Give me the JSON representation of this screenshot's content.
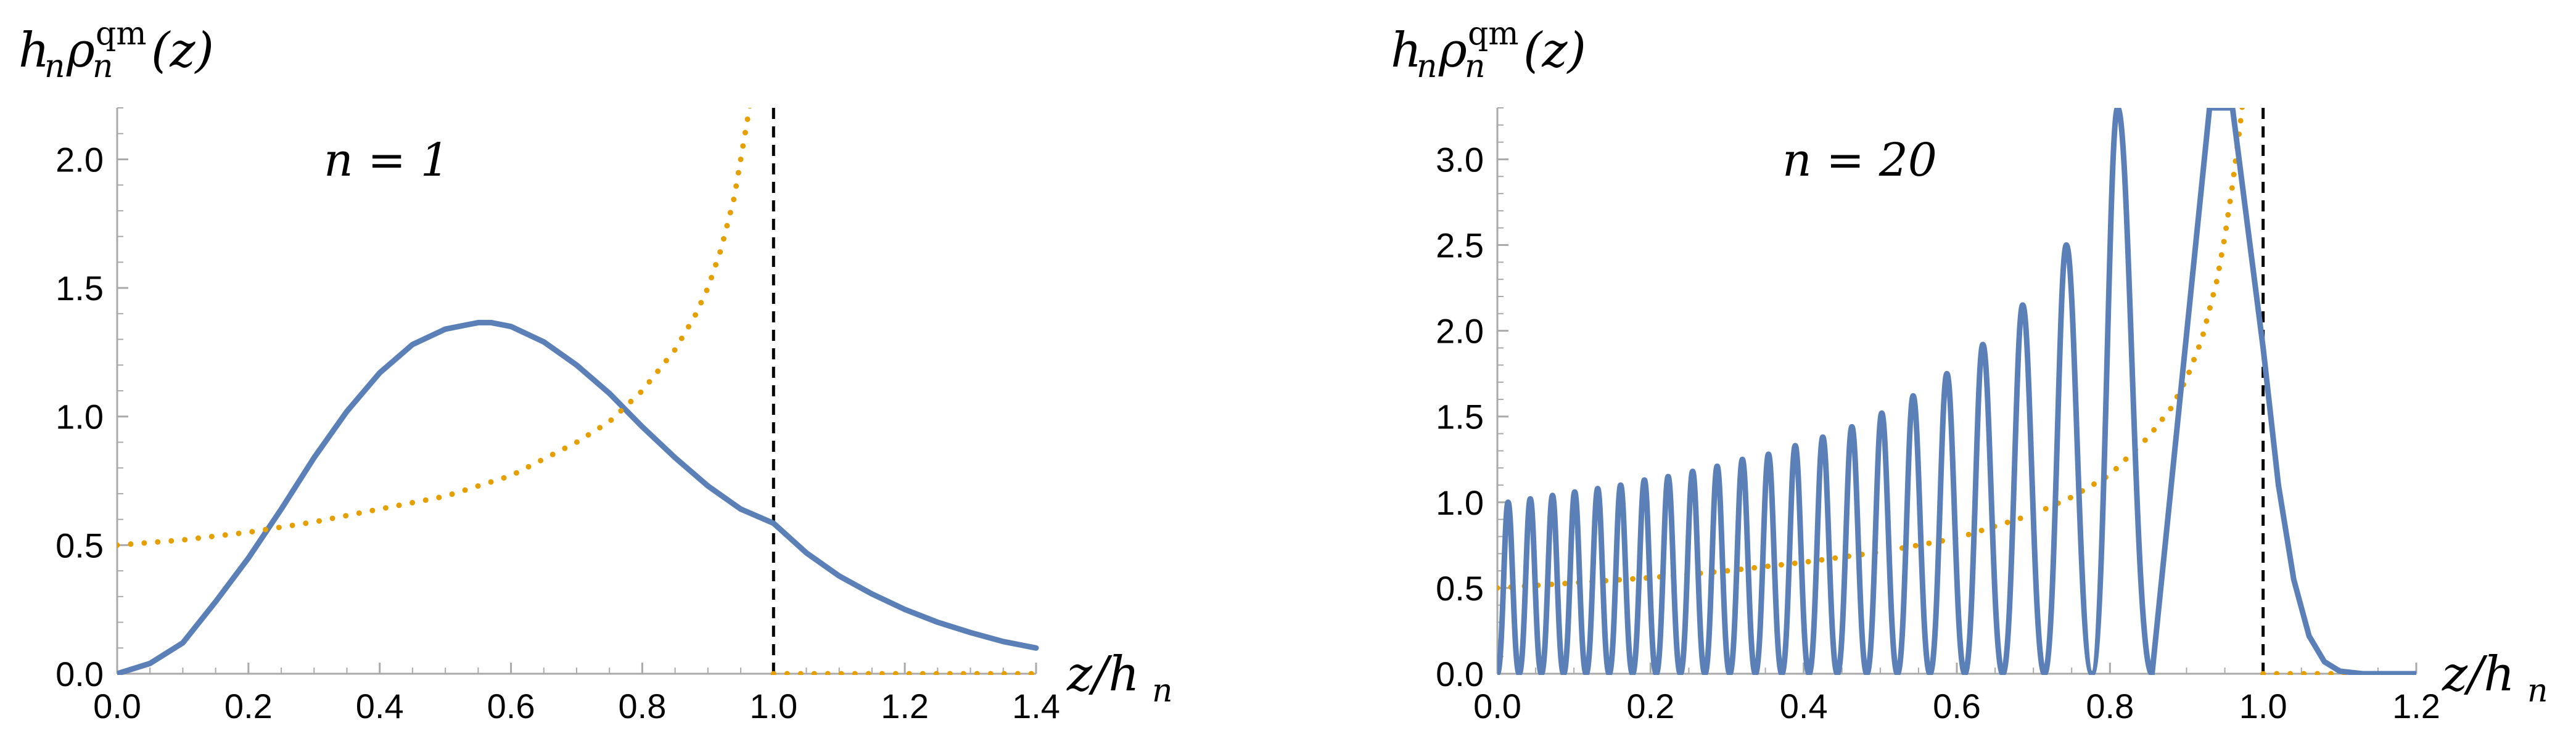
{
  "chart_data": [
    {
      "type": "line",
      "panel": "left",
      "annotation": "n = 1",
      "ylabel_parts": {
        "h": "h",
        "sub1": "n",
        "rho": "ρ",
        "sup": "qm",
        "sub2": "n",
        "arg": "(z)"
      },
      "xlabel_parts": {
        "num": "z/h",
        "sub": "n"
      },
      "xlim": [
        0,
        1.4
      ],
      "ylim": [
        0,
        2.2
      ],
      "xticks": [
        "0.0",
        "0.2",
        "0.4",
        "0.6",
        "0.8",
        "1.0",
        "1.2",
        "1.4"
      ],
      "yticks": [
        "0.0",
        "0.5",
        "1.0",
        "1.5",
        "2.0"
      ],
      "xtick_values": [
        0,
        0.2,
        0.4,
        0.6,
        0.8,
        1.0,
        1.2,
        1.4
      ],
      "ytick_values": [
        0,
        0.5,
        1.0,
        1.5,
        2.0
      ],
      "series": [
        {
          "style": "solid",
          "color": "#5b7fb7",
          "x": [
            0,
            0.05,
            0.1,
            0.15,
            0.2,
            0.25,
            0.3,
            0.35,
            0.4,
            0.45,
            0.5,
            0.55,
            0.57,
            0.6,
            0.65,
            0.7,
            0.75,
            0.8,
            0.85,
            0.9,
            0.95,
            1.0,
            1.05,
            1.1,
            1.15,
            1.2,
            1.25,
            1.3,
            1.35,
            1.4
          ],
          "y": [
            0.0,
            0.04,
            0.12,
            0.28,
            0.45,
            0.64,
            0.84,
            1.02,
            1.17,
            1.28,
            1.34,
            1.365,
            1.365,
            1.35,
            1.29,
            1.2,
            1.09,
            0.96,
            0.84,
            0.73,
            0.64,
            0.585,
            0.47,
            0.38,
            0.31,
            0.25,
            0.2,
            0.16,
            0.125,
            0.1
          ]
        },
        {
          "style": "dotted",
          "color": "#e69f00",
          "x": [
            0,
            0.1,
            0.2,
            0.3,
            0.4,
            0.5,
            0.6,
            0.7,
            0.75,
            0.8,
            0.85,
            0.88,
            0.9,
            0.92,
            0.94,
            0.95,
            0.96,
            0.97
          ],
          "y": [
            0.5,
            0.52,
            0.55,
            0.59,
            0.64,
            0.69,
            0.77,
            0.9,
            0.98,
            1.1,
            1.26,
            1.39,
            1.5,
            1.65,
            1.85,
            2.0,
            2.15,
            2.3
          ]
        },
        {
          "style": "dotted",
          "color": "#e69f00",
          "x": [
            1.0,
            1.4
          ],
          "y": [
            0,
            0
          ]
        }
      ],
      "vline": 1.0
    },
    {
      "type": "line",
      "panel": "right",
      "annotation": "n = 20",
      "ylabel_parts": {
        "h": "h",
        "sub1": "n",
        "rho": "ρ",
        "sup": "qm",
        "sub2": "n",
        "arg": "(z)"
      },
      "xlabel_parts": {
        "num": "z/h",
        "sub": "n"
      },
      "xlim": [
        0,
        1.2
      ],
      "ylim": [
        0,
        3.3
      ],
      "xticks": [
        "0.0",
        "0.2",
        "0.4",
        "0.6",
        "0.8",
        "1.0",
        "1.2"
      ],
      "yticks": [
        "0.0",
        "0.5",
        "1.0",
        "1.5",
        "2.0",
        "2.5",
        "3.0"
      ],
      "xtick_values": [
        0,
        0.2,
        0.4,
        0.6,
        0.8,
        1.0,
        1.2
      ],
      "ytick_values": [
        0,
        0.5,
        1.0,
        1.5,
        2.0,
        2.5,
        3.0
      ],
      "oscillation": {
        "style": "solid",
        "color": "#5b7fb7",
        "peaks_x": [
          0.014,
          0.043,
          0.072,
          0.101,
          0.131,
          0.161,
          0.192,
          0.223,
          0.255,
          0.287,
          0.32,
          0.354,
          0.389,
          0.425,
          0.463,
          0.502,
          0.543,
          0.587,
          0.634,
          0.686,
          0.743,
          0.81,
          0.9
        ],
        "peaks_y": [
          1.0,
          1.02,
          1.04,
          1.06,
          1.08,
          1.1,
          1.13,
          1.15,
          1.18,
          1.21,
          1.25,
          1.28,
          1.33,
          1.38,
          1.44,
          1.52,
          1.62,
          1.75,
          1.92,
          2.15,
          2.5,
          3.3,
          3.3
        ],
        "tail_x": [
          0.93,
          0.96,
          1.0,
          1.02,
          1.04,
          1.06,
          1.08,
          1.1,
          1.13,
          1.2
        ],
        "tail_y": [
          3.3,
          3.3,
          1.9,
          1.1,
          0.55,
          0.22,
          0.07,
          0.015,
          0.0,
          0.0
        ]
      },
      "series": [
        {
          "style": "dotted",
          "color": "#e69f00",
          "x": [
            0,
            0.1,
            0.2,
            0.3,
            0.4,
            0.5,
            0.6,
            0.7,
            0.75,
            0.8,
            0.85,
            0.88,
            0.9,
            0.92,
            0.94,
            0.95,
            0.96,
            0.97,
            0.98
          ],
          "y": [
            0.5,
            0.53,
            0.56,
            0.6,
            0.65,
            0.71,
            0.79,
            0.93,
            1.03,
            1.16,
            1.38,
            1.55,
            1.72,
            1.95,
            2.3,
            2.55,
            2.85,
            3.2,
            3.6
          ]
        },
        {
          "style": "dotted",
          "color": "#e69f00",
          "x": [
            1.0,
            1.2
          ],
          "y": [
            0,
            0
          ]
        }
      ],
      "vline": 1.0
    }
  ]
}
